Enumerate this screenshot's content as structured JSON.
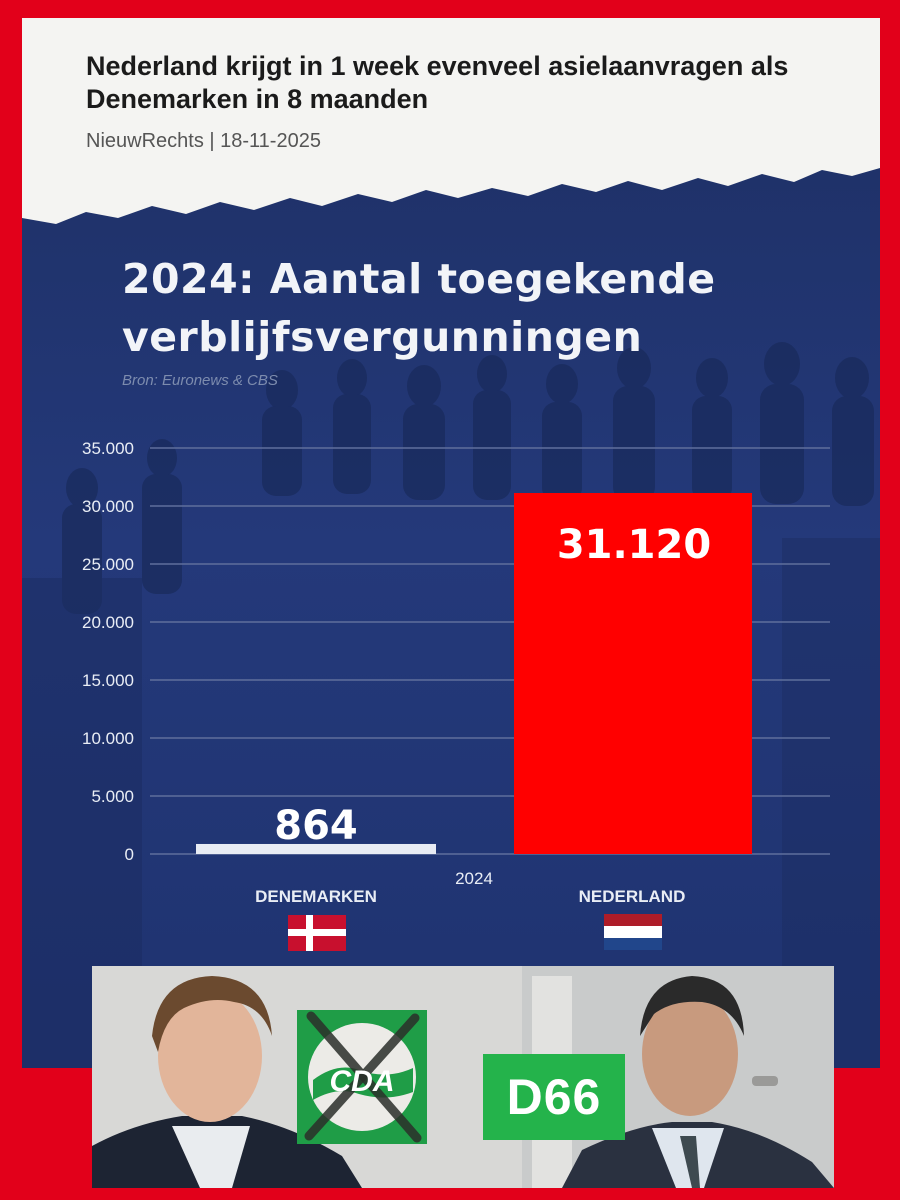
{
  "article": {
    "headline": "Nederland krijgt in 1 week evenveel asielaanvragen als Denemarken in 8 maanden",
    "byline": "NieuwRechts | 18-11-2025"
  },
  "chart_data": {
    "type": "bar",
    "title": "2024: Aantal toegekende verblijfsvergunningen",
    "source": "Bron: Euronews & CBS",
    "xlabel": "2024",
    "ylabel": "",
    "ylim": [
      0,
      35000
    ],
    "y_ticks": [
      0,
      5000,
      10000,
      15000,
      20000,
      25000,
      30000,
      35000
    ],
    "y_tick_labels": [
      "0",
      "5.000",
      "10.000",
      "15.000",
      "20.000",
      "25.000",
      "30.000",
      "35.000"
    ],
    "categories": [
      "DENEMARKEN",
      "NEDERLAND"
    ],
    "values": [
      864,
      31120
    ],
    "value_labels": [
      "864",
      "31.120"
    ],
    "bar_colors": [
      "#e8ecf4",
      "#ff0000"
    ],
    "grid": true
  },
  "logos": {
    "cda": "CDA",
    "d66": "D66"
  },
  "colors": {
    "frame": "#e2001a",
    "background": "#223870",
    "bar_nl": "#ff0000",
    "bar_dk": "#e8ecf4",
    "d66_green": "#24b34b",
    "cda_green": "#1f9d47"
  }
}
